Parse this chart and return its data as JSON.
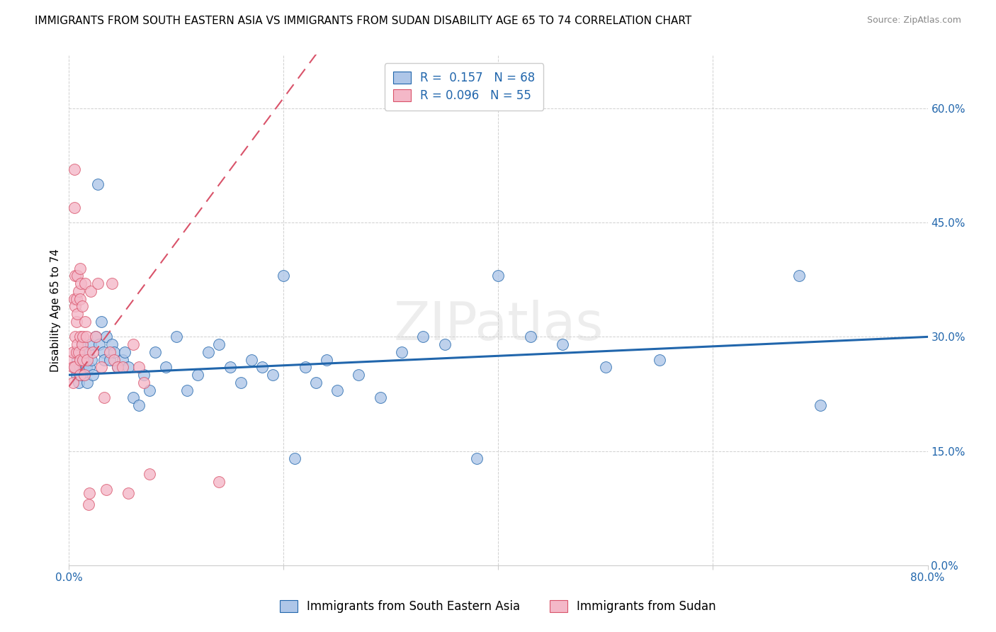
{
  "title": "IMMIGRANTS FROM SOUTH EASTERN ASIA VS IMMIGRANTS FROM SUDAN DISABILITY AGE 65 TO 74 CORRELATION CHART",
  "source": "Source: ZipAtlas.com",
  "xlabel_blue": "Immigrants from South Eastern Asia",
  "xlabel_pink": "Immigrants from Sudan",
  "ylabel": "Disability Age 65 to 74",
  "xlim": [
    0.0,
    0.8
  ],
  "ylim": [
    0.0,
    0.67
  ],
  "yticks": [
    0.0,
    0.15,
    0.3,
    0.45,
    0.6
  ],
  "ytick_labels": [
    "0.0%",
    "15.0%",
    "30.0%",
    "45.0%",
    "60.0%"
  ],
  "xticks": [
    0.0,
    0.2,
    0.4,
    0.6,
    0.8
  ],
  "xtick_labels": [
    "0.0%",
    "",
    "",
    "",
    "80.0%"
  ],
  "R_blue": 0.157,
  "N_blue": 68,
  "R_pink": 0.096,
  "N_pink": 55,
  "blue_color": "#aec6e8",
  "blue_line_color": "#2166ac",
  "pink_color": "#f4b8c8",
  "pink_line_color": "#d9536a",
  "pink_dash_color": "#d9536a",
  "watermark": "ZIPatlas",
  "title_fontsize": 11,
  "axis_label_fontsize": 11,
  "tick_fontsize": 11,
  "legend_fontsize": 12,
  "blue_x": [
    0.005,
    0.007,
    0.008,
    0.009,
    0.01,
    0.01,
    0.01,
    0.012,
    0.012,
    0.013,
    0.014,
    0.015,
    0.016,
    0.017,
    0.018,
    0.019,
    0.02,
    0.021,
    0.022,
    0.025,
    0.027,
    0.028,
    0.03,
    0.032,
    0.033,
    0.035,
    0.038,
    0.04,
    0.042,
    0.045,
    0.05,
    0.052,
    0.055,
    0.06,
    0.065,
    0.07,
    0.075,
    0.08,
    0.09,
    0.1,
    0.11,
    0.12,
    0.13,
    0.14,
    0.15,
    0.16,
    0.17,
    0.18,
    0.19,
    0.2,
    0.21,
    0.22,
    0.23,
    0.24,
    0.25,
    0.27,
    0.29,
    0.31,
    0.33,
    0.35,
    0.38,
    0.4,
    0.43,
    0.46,
    0.5,
    0.55,
    0.68,
    0.7
  ],
  "blue_y": [
    0.26,
    0.25,
    0.27,
    0.24,
    0.28,
    0.26,
    0.25,
    0.29,
    0.27,
    0.26,
    0.25,
    0.27,
    0.26,
    0.24,
    0.28,
    0.26,
    0.29,
    0.27,
    0.25,
    0.3,
    0.5,
    0.29,
    0.32,
    0.28,
    0.27,
    0.3,
    0.27,
    0.29,
    0.28,
    0.26,
    0.27,
    0.28,
    0.26,
    0.22,
    0.21,
    0.25,
    0.23,
    0.28,
    0.26,
    0.3,
    0.23,
    0.25,
    0.28,
    0.29,
    0.26,
    0.24,
    0.27,
    0.26,
    0.25,
    0.38,
    0.14,
    0.26,
    0.24,
    0.27,
    0.23,
    0.25,
    0.22,
    0.28,
    0.3,
    0.29,
    0.14,
    0.38,
    0.3,
    0.29,
    0.26,
    0.27,
    0.38,
    0.21
  ],
  "pink_x": [
    0.003,
    0.004,
    0.004,
    0.004,
    0.005,
    0.005,
    0.005,
    0.005,
    0.006,
    0.006,
    0.006,
    0.007,
    0.007,
    0.007,
    0.008,
    0.008,
    0.008,
    0.009,
    0.009,
    0.01,
    0.01,
    0.01,
    0.01,
    0.01,
    0.011,
    0.012,
    0.012,
    0.013,
    0.013,
    0.014,
    0.015,
    0.015,
    0.015,
    0.016,
    0.017,
    0.018,
    0.019,
    0.02,
    0.022,
    0.025,
    0.027,
    0.03,
    0.033,
    0.035,
    0.038,
    0.04,
    0.042,
    0.045,
    0.05,
    0.055,
    0.06,
    0.065,
    0.07,
    0.075,
    0.14
  ],
  "pink_y": [
    0.27,
    0.28,
    0.26,
    0.24,
    0.52,
    0.47,
    0.35,
    0.26,
    0.38,
    0.34,
    0.3,
    0.35,
    0.32,
    0.28,
    0.38,
    0.33,
    0.29,
    0.36,
    0.28,
    0.39,
    0.35,
    0.3,
    0.27,
    0.25,
    0.37,
    0.34,
    0.29,
    0.3,
    0.27,
    0.25,
    0.37,
    0.32,
    0.28,
    0.3,
    0.27,
    0.08,
    0.095,
    0.36,
    0.28,
    0.3,
    0.37,
    0.26,
    0.22,
    0.1,
    0.28,
    0.37,
    0.27,
    0.26,
    0.26,
    0.095,
    0.29,
    0.26,
    0.24,
    0.12,
    0.11
  ]
}
